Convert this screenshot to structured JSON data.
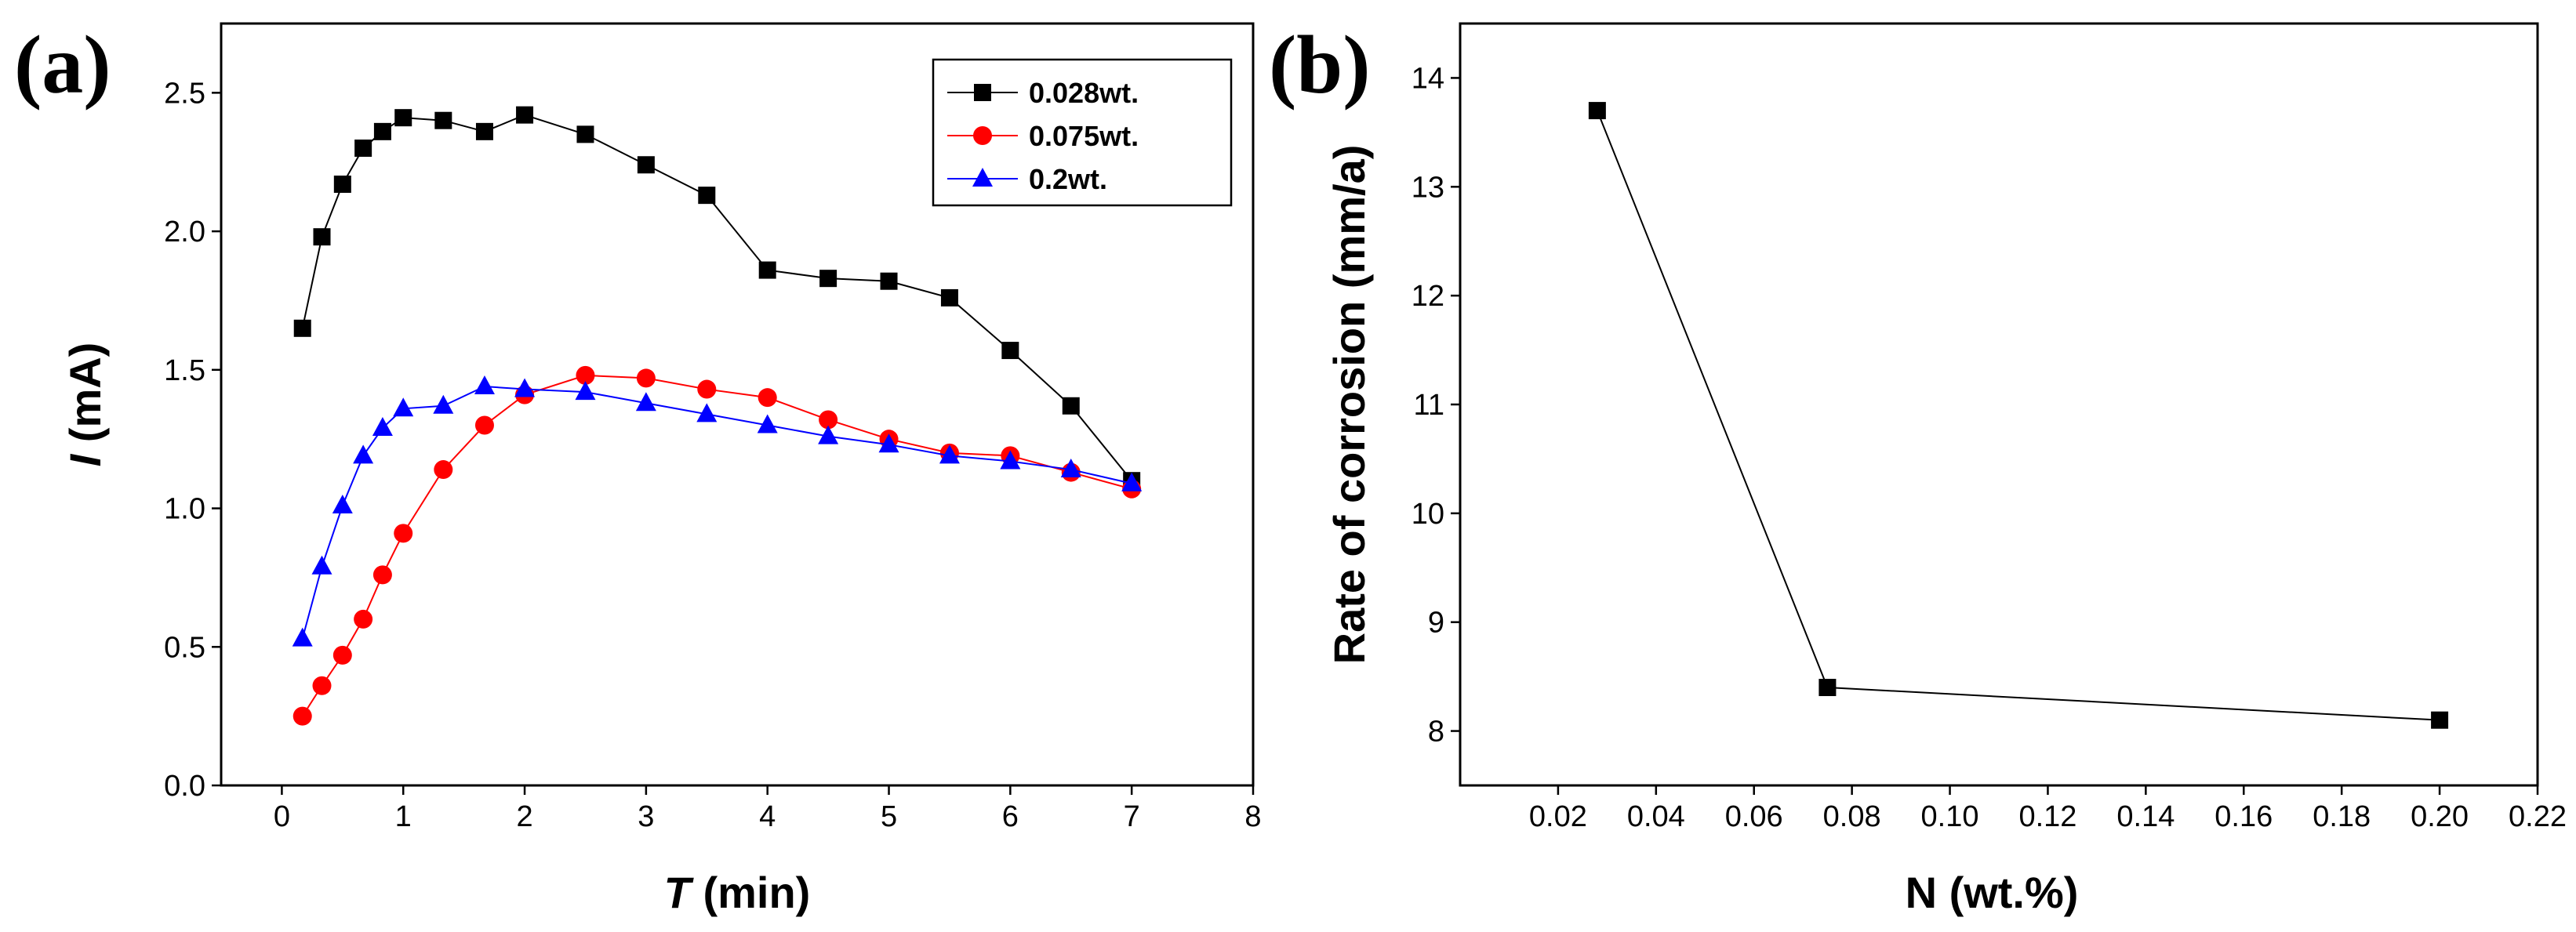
{
  "chart_data": [
    {
      "panel": "(a)",
      "type": "line",
      "title": "",
      "xlabel_var": "T",
      "xlabel_unit": "(min)",
      "ylabel_var": "I",
      "ylabel_unit": "(mA)",
      "xlim": [
        -0.5,
        8
      ],
      "ylim": [
        0.0,
        2.75
      ],
      "xticks": [
        0,
        1,
        2,
        3,
        4,
        5,
        6,
        7,
        8
      ],
      "xtick_labels": [
        "0",
        "1",
        "2",
        "3",
        "4",
        "5",
        "6",
        "7",
        "8"
      ],
      "yticks": [
        0.0,
        0.5,
        1.0,
        1.5,
        2.0,
        2.5
      ],
      "ytick_labels": [
        "0.0",
        "0.5",
        "1.0",
        "1.5",
        "2.0",
        "2.5"
      ],
      "grid": false,
      "legend_position": "top-right",
      "series": [
        {
          "name": "0.028wt.",
          "color": "#000000",
          "marker": "square",
          "x": [
            0.17,
            0.33,
            0.5,
            0.67,
            0.83,
            1.0,
            1.33,
            1.67,
            2.0,
            2.5,
            3.0,
            3.5,
            4.0,
            4.5,
            5.0,
            5.5,
            6.0,
            6.5,
            7.0
          ],
          "y": [
            1.65,
            1.98,
            2.17,
            2.3,
            2.36,
            2.41,
            2.4,
            2.36,
            2.42,
            2.35,
            2.24,
            2.13,
            1.86,
            1.83,
            1.82,
            1.76,
            1.57,
            1.37,
            1.1
          ]
        },
        {
          "name": "0.075wt.",
          "color": "#ff0000",
          "marker": "circle",
          "x": [
            0.17,
            0.33,
            0.5,
            0.67,
            0.83,
            1.0,
            1.33,
            1.67,
            2.0,
            2.5,
            3.0,
            3.5,
            4.0,
            4.5,
            5.0,
            5.5,
            6.0,
            6.5,
            7.0
          ],
          "y": [
            0.25,
            0.36,
            0.47,
            0.6,
            0.76,
            0.91,
            1.14,
            1.3,
            1.41,
            1.48,
            1.47,
            1.43,
            1.4,
            1.32,
            1.25,
            1.2,
            1.19,
            1.13,
            1.07
          ]
        },
        {
          "name": "0.2wt.",
          "color": "#0000ff",
          "marker": "triangle",
          "x": [
            0.17,
            0.33,
            0.5,
            0.67,
            0.83,
            1.0,
            1.33,
            1.67,
            2.0,
            2.5,
            3.0,
            3.5,
            4.0,
            4.5,
            5.0,
            5.5,
            6.0,
            6.5,
            7.0
          ],
          "y": [
            0.53,
            0.79,
            1.01,
            1.19,
            1.29,
            1.36,
            1.37,
            1.44,
            1.43,
            1.42,
            1.38,
            1.34,
            1.3,
            1.26,
            1.23,
            1.19,
            1.17,
            1.14,
            1.09
          ]
        }
      ]
    },
    {
      "panel": "(b)",
      "type": "line",
      "title": "",
      "xlabel": "N (wt.%)",
      "ylabel": "Rate of corrosion (mm/a)",
      "xlim": [
        0.0,
        0.22
      ],
      "ylim": [
        7.5,
        14.5
      ],
      "xticks": [
        0.02,
        0.04,
        0.06,
        0.08,
        0.1,
        0.12,
        0.14,
        0.16,
        0.18,
        0.2,
        0.22
      ],
      "xtick_labels": [
        "0.02",
        "0.04",
        "0.06",
        "0.08",
        "0.10",
        "0.12",
        "0.14",
        "0.16",
        "0.18",
        "0.20",
        "0.22"
      ],
      "yticks": [
        8,
        9,
        10,
        11,
        12,
        13,
        14
      ],
      "ytick_labels": [
        "8",
        "9",
        "10",
        "11",
        "12",
        "13",
        "14"
      ],
      "grid": false,
      "series": [
        {
          "name": "corrosion rate",
          "color": "#000000",
          "marker": "square",
          "x": [
            0.028,
            0.075,
            0.2
          ],
          "y": [
            13.7,
            8.4,
            8.1
          ]
        }
      ]
    }
  ]
}
